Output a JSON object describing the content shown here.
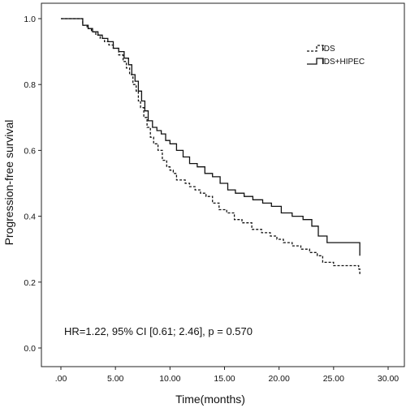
{
  "chart_data": {
    "type": "line",
    "xlabel": "Time(months)",
    "ylabel": "Progression-free survival",
    "xlim": [
      0,
      30
    ],
    "ylim": [
      0,
      1
    ],
    "x_ticks": [
      ".00",
      "5.00",
      "10.00",
      "15.00",
      "20.00",
      "25.00",
      "30.00"
    ],
    "y_ticks": [
      "0.0",
      "0.2",
      "0.4",
      "0.6",
      "0.8",
      "1.0"
    ],
    "x_tick_values": [
      0,
      5,
      10,
      15,
      20,
      25,
      30
    ],
    "y_tick_values": [
      0,
      0.2,
      0.4,
      0.6,
      0.8,
      1.0
    ],
    "grid": false,
    "legend_position": "top-right",
    "annotation": "HR=1.22, 95% CI [0.61; 2.46], p = 0.570",
    "series": [
      {
        "name": "IDS",
        "style": "dashed",
        "x": [
          0,
          2.0,
          2.4,
          2.8,
          3.2,
          3.6,
          4.0,
          4.4,
          4.8,
          5.3,
          5.7,
          6.0,
          6.3,
          6.6,
          6.9,
          7.1,
          7.3,
          7.6,
          7.9,
          8.2,
          8.5,
          8.9,
          9.3,
          9.7,
          10.0,
          10.3,
          10.6,
          11.0,
          11.4,
          11.8,
          12.3,
          12.8,
          13.3,
          13.9,
          14.5,
          15.2,
          15.9,
          16.6,
          17.5,
          18.4,
          19.2,
          19.8,
          20.4,
          21.2,
          22.0,
          22.8,
          23.5,
          24.0,
          25.0,
          26.0,
          27.3,
          27.4
        ],
        "y": [
          1.0,
          0.98,
          0.97,
          0.96,
          0.95,
          0.94,
          0.93,
          0.92,
          0.91,
          0.89,
          0.87,
          0.85,
          0.83,
          0.8,
          0.78,
          0.75,
          0.73,
          0.7,
          0.67,
          0.64,
          0.62,
          0.6,
          0.57,
          0.55,
          0.54,
          0.53,
          0.51,
          0.51,
          0.5,
          0.49,
          0.48,
          0.47,
          0.46,
          0.44,
          0.42,
          0.41,
          0.39,
          0.38,
          0.36,
          0.35,
          0.34,
          0.33,
          0.32,
          0.31,
          0.3,
          0.29,
          0.28,
          0.26,
          0.25,
          0.25,
          0.24,
          0.22
        ]
      },
      {
        "name": "IDS+HIPEC",
        "style": "solid",
        "x": [
          0,
          2.0,
          2.5,
          2.9,
          3.4,
          3.8,
          4.3,
          4.8,
          5.3,
          5.8,
          6.2,
          6.5,
          6.8,
          7.1,
          7.4,
          7.7,
          8.0,
          8.4,
          8.8,
          9.2,
          9.6,
          10.0,
          10.6,
          11.2,
          11.8,
          12.5,
          13.2,
          13.9,
          14.6,
          15.3,
          16.0,
          16.8,
          17.6,
          18.5,
          19.3,
          20.2,
          21.2,
          22.2,
          23.0,
          23.6,
          24.4,
          27.3,
          27.4
        ],
        "y": [
          1.0,
          0.98,
          0.97,
          0.96,
          0.95,
          0.94,
          0.93,
          0.91,
          0.9,
          0.88,
          0.86,
          0.83,
          0.81,
          0.78,
          0.75,
          0.72,
          0.69,
          0.67,
          0.66,
          0.65,
          0.63,
          0.62,
          0.6,
          0.58,
          0.56,
          0.55,
          0.53,
          0.52,
          0.5,
          0.48,
          0.47,
          0.46,
          0.45,
          0.44,
          0.43,
          0.41,
          0.4,
          0.39,
          0.37,
          0.34,
          0.32,
          0.32,
          0.28
        ]
      }
    ]
  }
}
